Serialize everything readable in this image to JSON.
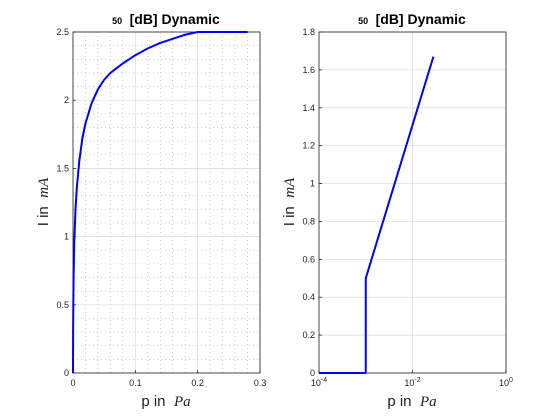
{
  "chart_data": [
    {
      "type": "line",
      "title_prefix": "50",
      "title": "[dB] Dynamic",
      "xlabel_prefix": "p in",
      "xlabel_unit": "Pa",
      "ylabel_prefix": "I in",
      "ylabel_unit": "mA",
      "xscale": "linear",
      "xlim": [
        0,
        0.3
      ],
      "ylim": [
        0,
        2.5
      ],
      "xticks": [
        0,
        0.1,
        0.2,
        0.3
      ],
      "xtick_labels": [
        "0",
        "0.1",
        "0.2",
        "0.3"
      ],
      "yticks": [
        0,
        0.5,
        1,
        1.5,
        2,
        2.5
      ],
      "ytick_labels": [
        "0",
        "0.5",
        "1",
        "1.5",
        "2",
        "2.5"
      ],
      "grid": true,
      "minor_grid": true,
      "series": [
        {
          "color": "#0000ee",
          "x": [
            0,
            0.0002,
            0.0005,
            0.001,
            0.002,
            0.004,
            0.006,
            0.01,
            0.015,
            0.02,
            0.03,
            0.04,
            0.05,
            0.06,
            0.08,
            0.1,
            0.12,
            0.14,
            0.16,
            0.18,
            0.2,
            0.22,
            0.25,
            0.28
          ],
          "y": [
            0,
            0.3,
            0.5,
            0.72,
            0.95,
            1.2,
            1.35,
            1.55,
            1.72,
            1.83,
            1.98,
            2.08,
            2.15,
            2.2,
            2.27,
            2.33,
            2.38,
            2.42,
            2.45,
            2.48,
            2.5,
            2.5,
            2.5,
            2.5
          ]
        }
      ]
    },
    {
      "type": "line",
      "title_prefix": "50",
      "title": "[dB] Dynamic",
      "xlabel_prefix": "p in",
      "xlabel_unit": "Pa",
      "ylabel_prefix": "I in",
      "ylabel_unit": "mA",
      "xscale": "log",
      "xlim": [
        0.0001,
        1
      ],
      "ylim": [
        0,
        1.8
      ],
      "xticks": [
        0.0001,
        0.01,
        1
      ],
      "xtick_bases": [
        "10",
        "10",
        "10"
      ],
      "xtick_exponents": [
        "-4",
        "-2",
        "0"
      ],
      "yticks": [
        0,
        0.2,
        0.4,
        0.6,
        0.8,
        1,
        1.2,
        1.4,
        1.6,
        1.8
      ],
      "ytick_labels": [
        "0",
        "0.2",
        "0.4",
        "0.6",
        "0.8",
        "1",
        "1.2",
        "1.4",
        "1.6",
        "1.8"
      ],
      "grid": true,
      "series": [
        {
          "color": "#0000ee",
          "x": [
            0.0001,
            0.001,
            0.001,
            0.001,
            0.028
          ],
          "y": [
            0,
            0,
            0.02,
            0.5,
            1.67
          ]
        }
      ]
    }
  ]
}
